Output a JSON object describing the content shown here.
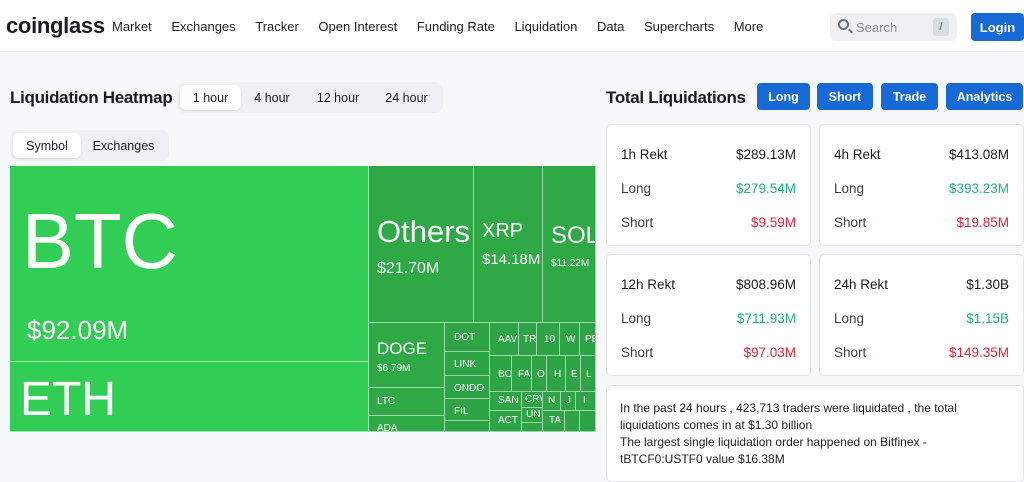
{
  "nav": {
    "logo": "coinglass",
    "items": [
      "Market",
      "Exchanges",
      "Tracker",
      "Open Interest",
      "Funding Rate",
      "Liquidation",
      "Data",
      "Supercharts",
      "More"
    ],
    "search_placeholder": "Search",
    "search_shortcut": "/",
    "login": "Login"
  },
  "heatmap": {
    "title": "Liquidation Heatmap",
    "time_tabs": [
      "1 hour",
      "4 hour",
      "12 hour",
      "24 hour"
    ],
    "active_time": "1 hour",
    "group_tabs": [
      "Symbol",
      "Exchanges"
    ],
    "active_group": "Symbol",
    "tiles": {
      "btc": {
        "name": "BTC",
        "value": "$92.09M"
      },
      "eth": {
        "name": "ETH"
      },
      "others": {
        "name": "Others",
        "value": "$21.70M"
      },
      "xrp": {
        "name": "XRP",
        "value": "$14.18M"
      },
      "sol": {
        "name": "SOL",
        "value": "$11.22M"
      },
      "doge": {
        "name": "DOGE",
        "value": "$6.79M"
      },
      "ltc": {
        "name": "LTC"
      },
      "ada": {
        "name": "ADA"
      },
      "dot": {
        "name": "DOT"
      },
      "link": {
        "name": "LINK"
      },
      "ondo": {
        "name": "ONDO"
      },
      "fil": {
        "name": "FIL"
      },
      "aav": {
        "name": "AAV"
      },
      "tr": {
        "name": "TR"
      },
      "n10": {
        "name": "10"
      },
      "w": {
        "name": "W"
      },
      "pe": {
        "name": "PE"
      },
      "bo": {
        "name": "BO"
      },
      "fa": {
        "name": "FA"
      },
      "o": {
        "name": "O"
      },
      "h": {
        "name": "H"
      },
      "e": {
        "name": "E"
      },
      "l": {
        "name": "L"
      },
      "san": {
        "name": "SAN"
      },
      "crv": {
        "name": "CRV"
      },
      "n": {
        "name": "N"
      },
      "j": {
        "name": "J"
      },
      "i": {
        "name": "I"
      },
      "act": {
        "name": "ACT"
      },
      "un": {
        "name": "UN"
      },
      "ta": {
        "name": "TA"
      }
    }
  },
  "total": {
    "title": "Total Liquidations",
    "buttons": [
      "Long",
      "Short",
      "Trade",
      "Analytics"
    ],
    "cards": [
      {
        "label": "1h Rekt",
        "total": "$289.13M",
        "long_label": "Long",
        "long": "$279.54M",
        "short_label": "Short",
        "short": "$9.59M"
      },
      {
        "label": "4h Rekt",
        "total": "$413.08M",
        "long_label": "Long",
        "long": "$393.23M",
        "short_label": "Short",
        "short": "$19.85M"
      },
      {
        "label": "12h Rekt",
        "total": "$808.96M",
        "long_label": "Long",
        "long": "$711.93M",
        "short_label": "Short",
        "short": "$97.03M"
      },
      {
        "label": "24h Rekt",
        "total": "$1.30B",
        "long_label": "Long",
        "long": "$1.15B",
        "short_label": "Short",
        "short": "$149.35M"
      }
    ],
    "summary_line1": "In the past 24 hours , 423,713 traders were liquidated , the total liquidations comes in at $1.30 billion",
    "summary_line2": "The largest single liquidation order happened on Bitfinex - tBTCF0:USTF0 value $16.38M"
  },
  "colors": {
    "accent": "#1769d6",
    "tile_main": "#31cd55",
    "tile_alt": "#2ea946",
    "long": "#22b08a",
    "short": "#e0263e"
  }
}
